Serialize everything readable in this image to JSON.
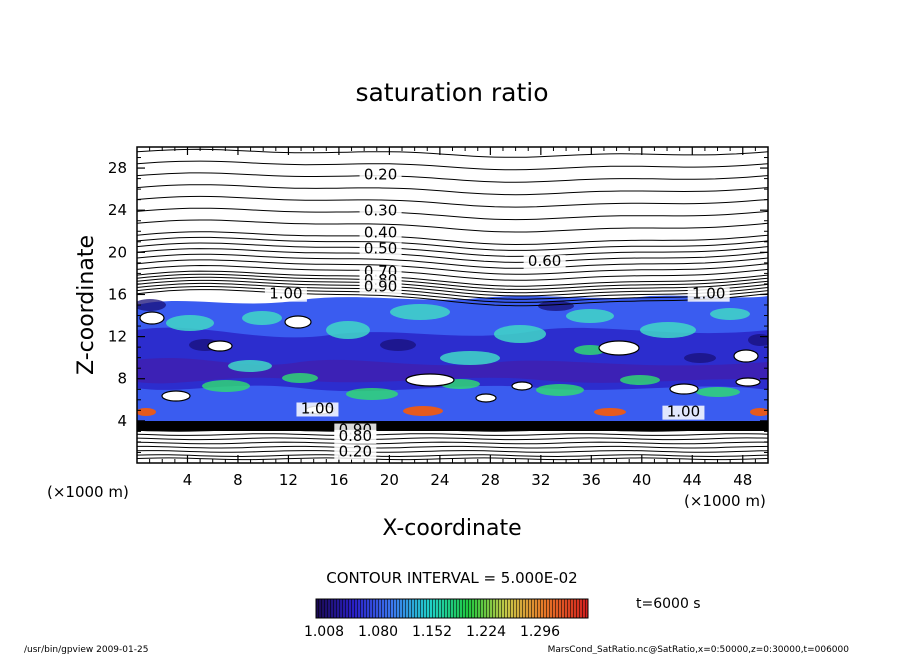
{
  "chart_data": {
    "type": "contour",
    "title": "saturation ratio",
    "xlabel": "X-coordinate",
    "ylabel": "Z-coordinate",
    "x_unit_label": "(×1000 m)",
    "z_unit_label": "(×1000 m)",
    "xlim": [
      0,
      50
    ],
    "ylim": [
      0,
      30
    ],
    "x_ticks": [
      4,
      8,
      12,
      16,
      20,
      24,
      28,
      32,
      36,
      40,
      44,
      48
    ],
    "y_ticks": [
      4,
      8,
      12,
      16,
      20,
      24,
      28
    ],
    "contour_labels": [
      {
        "text": "0.20",
        "x": 19.3,
        "z": 26.9
      },
      {
        "text": "0.30",
        "x": 19.3,
        "z": 23.5
      },
      {
        "text": "0.40",
        "x": 19.3,
        "z": 21.4
      },
      {
        "text": "0.50",
        "x": 19.3,
        "z": 19.9
      },
      {
        "text": "0.60",
        "x": 32.3,
        "z": 18.7
      },
      {
        "text": "0.70",
        "x": 19.3,
        "z": 17.7
      },
      {
        "text": "0.80",
        "x": 19.3,
        "z": 16.9
      },
      {
        "text": "0.90",
        "x": 19.3,
        "z": 16.3
      },
      {
        "text": "1.00",
        "x": 11.8,
        "z": 15.6
      },
      {
        "text": "1.00",
        "x": 45.3,
        "z": 15.6
      },
      {
        "text": "1.00",
        "x": 14.3,
        "z": 4.7
      },
      {
        "text": "1.00",
        "x": 43.3,
        "z": 4.4
      },
      {
        "text": "0.90",
        "x": 17.3,
        "z": 2.7
      },
      {
        "text": "0.80",
        "x": 17.3,
        "z": 2.1
      },
      {
        "text": "0.20",
        "x": 17.3,
        "z": 0.6
      }
    ],
    "contour_interval_text": "CONTOUR INTERVAL = 5.000E-02",
    "colorbar": {
      "ticks": [
        "1.008",
        "1.080",
        "1.152",
        "1.224",
        "1.296"
      ],
      "colors": [
        "#1a0a50",
        "#2a20c8",
        "#3c78f0",
        "#20d2c8",
        "#20c840",
        "#d2d240",
        "#e87828",
        "#d21e1e"
      ]
    },
    "time_label": "t=6000 s",
    "colors": {
      "supersat_low": "#2a20c8",
      "supersat_mid": "#3c96f0",
      "supersat_high": "#40e6b4",
      "supersat_peak": "#e65a1e"
    }
  },
  "footer": {
    "left": "/usr/bin/gpview   2009-01-25",
    "right": "MarsCond_SatRatio.nc@SatRatio,x=0:50000,z=0:30000,t=006000"
  }
}
